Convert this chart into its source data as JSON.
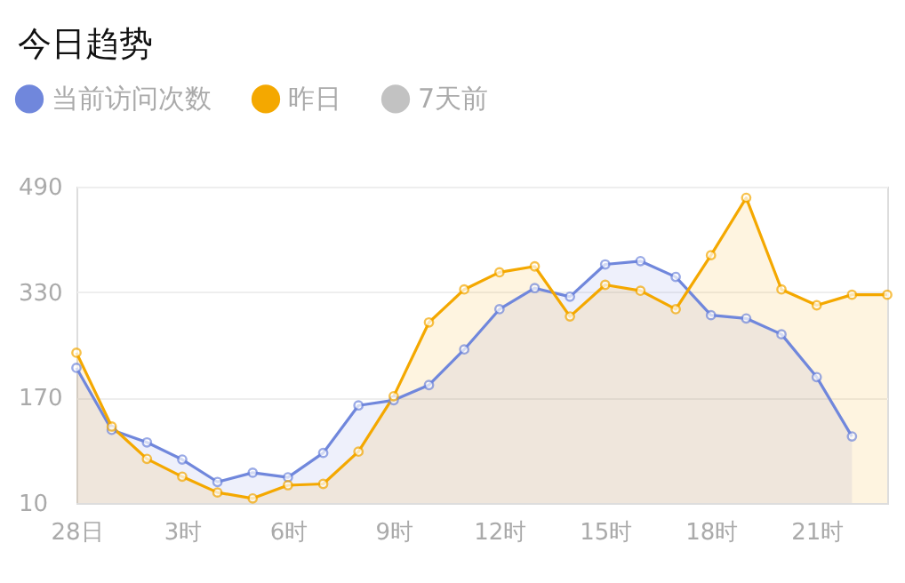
{
  "chart_data": {
    "type": "area",
    "title": "今日趋势",
    "categories": [
      "28日",
      null,
      null,
      "3时",
      null,
      null,
      "6时",
      null,
      null,
      "9时",
      null,
      null,
      "12时",
      null,
      null,
      "15时",
      null,
      null,
      "18时",
      null,
      null,
      "21时",
      null,
      null
    ],
    "series": [
      {
        "name": "当前访问次数",
        "color": "#7087dc",
        "values": [
          215,
          121,
          102,
          76,
          42,
          56,
          49,
          86,
          158,
          166,
          189,
          243,
          304,
          336,
          323,
          372,
          377,
          353,
          295,
          290,
          266,
          201,
          111,
          null
        ]
      },
      {
        "name": "昨日",
        "color": "#f4a800",
        "values": [
          238,
          126,
          77,
          50,
          26,
          17,
          37,
          39,
          88,
          172,
          284,
          334,
          360,
          369,
          293,
          341,
          332,
          304,
          386,
          473,
          334,
          310,
          326,
          326
        ]
      },
      {
        "name": "7天前",
        "color": "#c2c2c2",
        "values": [
          null,
          null,
          null,
          null,
          null,
          null,
          null,
          null,
          null,
          null,
          null,
          null,
          null,
          null,
          null,
          null,
          null,
          null,
          null,
          null,
          null,
          null,
          null,
          null
        ]
      }
    ],
    "ylim": [
      10,
      490
    ],
    "yticks": [
      10,
      170,
      330,
      490
    ],
    "grid": "y",
    "legend": "top left",
    "marker": "circle",
    "line_style": "solid"
  }
}
